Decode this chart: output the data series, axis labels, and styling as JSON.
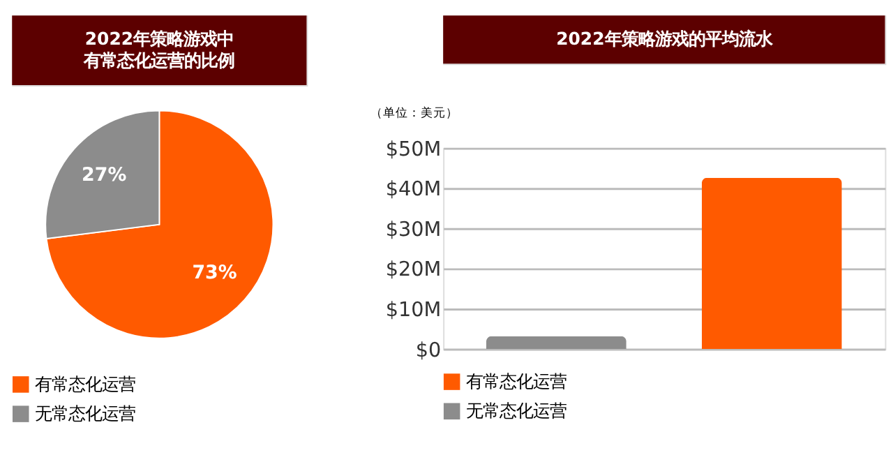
{
  "chart_data": [
    {
      "type": "pie",
      "title": "2022年策略游戏中有常态化运营的比例",
      "categories": [
        "有常态化运营",
        "无常态化运营"
      ],
      "values": [
        73,
        27
      ],
      "value_labels": [
        "73%",
        "27%"
      ],
      "colors": [
        "#ff5a00",
        "#8c8c8c"
      ],
      "legend": "bottom"
    },
    {
      "type": "bar",
      "title": "2022年策略游戏的平均流水",
      "ylabel": "（单位：美元）",
      "categories": [
        null,
        null
      ],
      "series": [
        {
          "name": "有常态化运营",
          "color": "#ff5a00",
          "values": [
            null,
            42.6
          ]
        },
        {
          "name": "无常态化运营",
          "color": "#8c8c8c",
          "values": [
            3.2,
            null
          ]
        }
      ],
      "ylim": [
        0,
        50
      ],
      "yticks": [
        {
          "value": 0,
          "label": "$0"
        },
        {
          "value": 10,
          "label": "$10M"
        },
        {
          "value": 20,
          "label": "$20M"
        },
        {
          "value": 30,
          "label": "$30M"
        },
        {
          "value": 40,
          "label": "$40M"
        },
        {
          "value": 50,
          "label": "$50M"
        }
      ],
      "grid": "y",
      "tick_labels": "y",
      "legend": "bottom"
    }
  ]
}
